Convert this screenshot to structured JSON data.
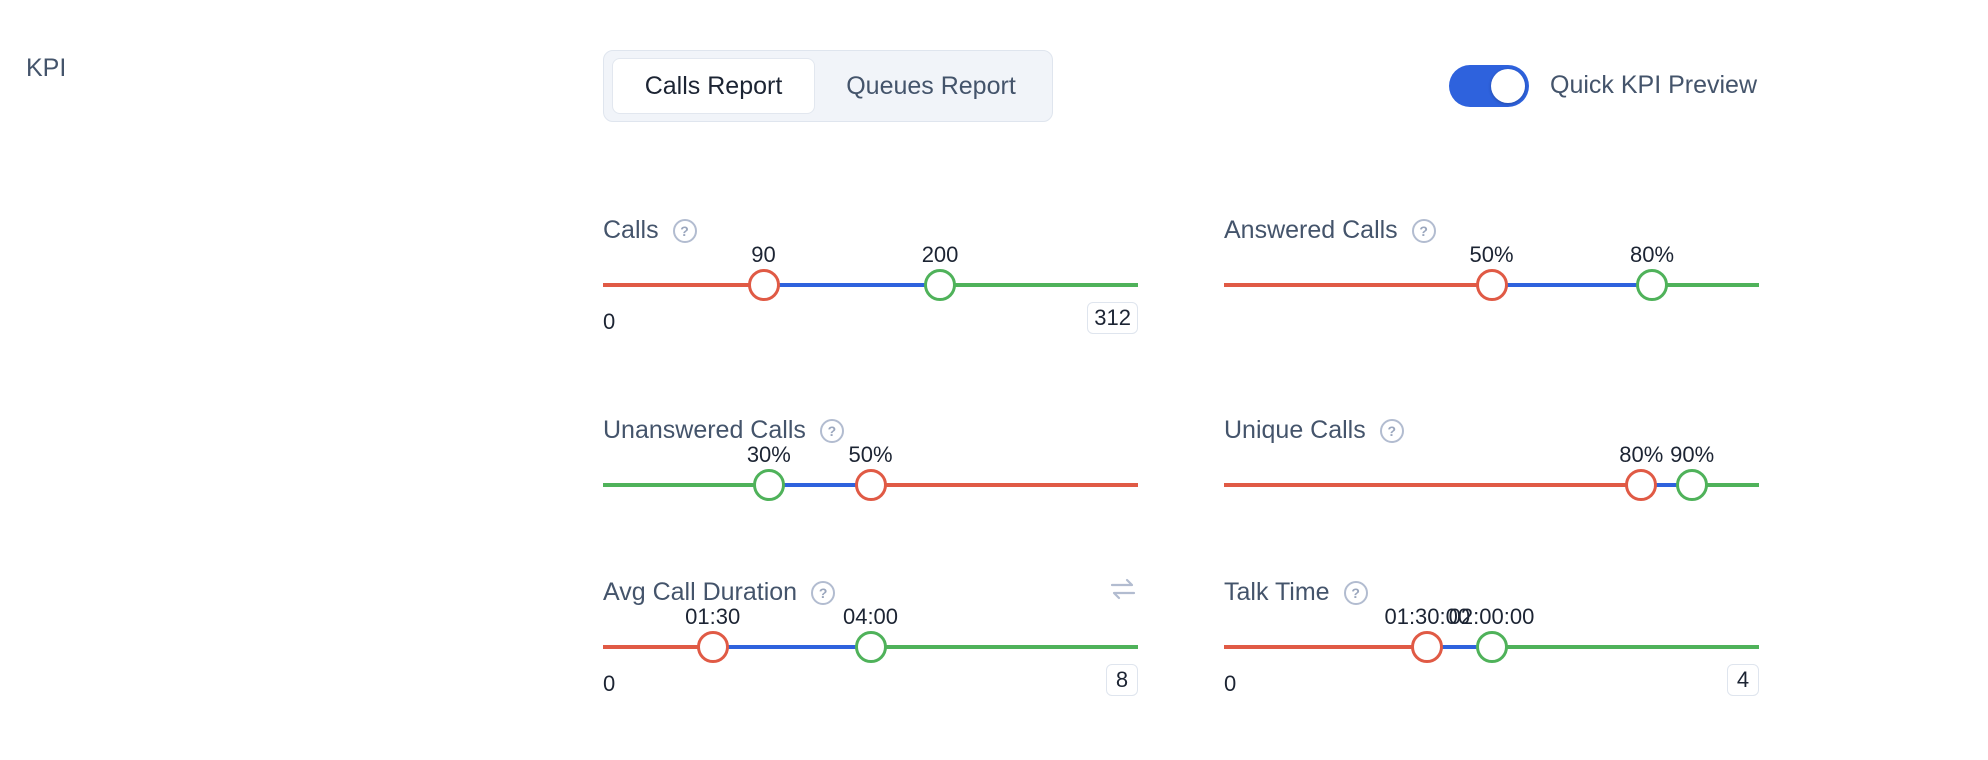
{
  "page": {
    "label": "KPI"
  },
  "tabs": [
    {
      "label": "Calls Report",
      "active": true
    },
    {
      "label": "Queues Report",
      "active": false
    }
  ],
  "toggle": {
    "label": "Quick KPI Preview",
    "on": true
  },
  "colors": {
    "red": "#e05a45",
    "blue": "#2e62dd",
    "green": "#4fb25a",
    "toggle": "#2e62dd"
  },
  "kpis": [
    {
      "title": "Calls",
      "low_label": "90",
      "high_label": "200",
      "min_label": "0",
      "max_label": "312",
      "low_fraction": 0.3,
      "high_fraction": 0.63,
      "zones": [
        "red",
        "blue",
        "green"
      ]
    },
    {
      "title": "Answered Calls",
      "low_label": "50%",
      "high_label": "80%",
      "low_fraction": 0.5,
      "high_fraction": 0.8,
      "zones": [
        "red",
        "blue",
        "green"
      ]
    },
    {
      "title": "Unanswered Calls",
      "low_label": "30%",
      "high_label": "50%",
      "low_fraction": 0.31,
      "high_fraction": 0.5,
      "zones": [
        "green",
        "blue",
        "red"
      ]
    },
    {
      "title": "Unique Calls",
      "low_label": "80%",
      "high_label": "90%",
      "low_fraction": 0.78,
      "high_fraction": 0.875,
      "zones": [
        "red",
        "blue",
        "green"
      ]
    },
    {
      "title": "Avg Call Duration",
      "low_label": "01:30",
      "high_label": "04:00",
      "min_label": "0",
      "max_label": "8",
      "low_fraction": 0.205,
      "high_fraction": 0.5,
      "zones": [
        "red",
        "blue",
        "green"
      ],
      "has_swap_icon": true
    },
    {
      "title": "Talk Time",
      "low_label": "01:30:00",
      "high_label": "02:00:00",
      "min_label": "0",
      "max_label": "4",
      "low_fraction": 0.38,
      "high_fraction": 0.5,
      "zones": [
        "red",
        "blue",
        "green"
      ]
    }
  ]
}
